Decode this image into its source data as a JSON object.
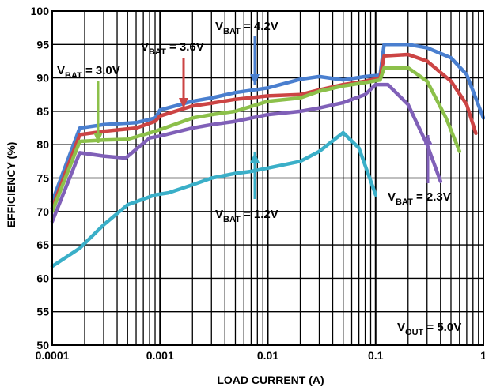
{
  "chart_data": {
    "type": "line",
    "xlabel": "LOAD CURRENT (A)",
    "ylabel": "EFFICIENCY (%)",
    "xscale": "log",
    "xlim": [
      0.0001,
      1
    ],
    "ylim": [
      50,
      100
    ],
    "grid": true,
    "x_tick_labels": [
      "0.0001",
      "0.001",
      "0.01",
      "0.1",
      "1"
    ],
    "y_tick_labels": [
      "50",
      "55",
      "60",
      "65",
      "70",
      "75",
      "80",
      "85",
      "90",
      "95",
      "100"
    ],
    "series": [
      {
        "color": "#4a7fcf",
        "label_main": "V",
        "label_sub": "BAT",
        "label_value": " = 4.2V",
        "points": [
          [
            0.0001,
            71.5
          ],
          [
            0.00018,
            82.5
          ],
          [
            0.0003,
            83
          ],
          [
            0.0006,
            83.3
          ],
          [
            0.0009,
            84
          ],
          [
            0.001,
            85.2
          ],
          [
            0.002,
            86.5
          ],
          [
            0.003,
            87
          ],
          [
            0.005,
            87.8
          ],
          [
            0.01,
            88.5
          ],
          [
            0.02,
            89.8
          ],
          [
            0.03,
            90.2
          ],
          [
            0.05,
            89.7
          ],
          [
            0.08,
            90.2
          ],
          [
            0.11,
            90.4
          ],
          [
            0.12,
            95
          ],
          [
            0.2,
            95
          ],
          [
            0.3,
            94.5
          ],
          [
            0.5,
            93
          ],
          [
            0.7,
            90.5
          ],
          [
            1.0,
            84
          ]
        ]
      },
      {
        "color": "#cc4444",
        "label_main": "V",
        "label_sub": "BAT",
        "label_value": " = 3.6V",
        "points": [
          [
            0.0001,
            70.5
          ],
          [
            0.00018,
            81.5
          ],
          [
            0.0003,
            82
          ],
          [
            0.0006,
            82.5
          ],
          [
            0.0009,
            83.5
          ],
          [
            0.001,
            84.3
          ],
          [
            0.002,
            85.8
          ],
          [
            0.003,
            86.2
          ],
          [
            0.005,
            86.8
          ],
          [
            0.01,
            87.3
          ],
          [
            0.02,
            87.5
          ],
          [
            0.03,
            88.2
          ],
          [
            0.05,
            89
          ],
          [
            0.08,
            89.5
          ],
          [
            0.11,
            90
          ],
          [
            0.12,
            93.3
          ],
          [
            0.2,
            93.5
          ],
          [
            0.3,
            92.5
          ],
          [
            0.5,
            89.5
          ],
          [
            0.7,
            86
          ],
          [
            0.85,
            81.7
          ]
        ]
      },
      {
        "color": "#8cc04a",
        "label_main": "V",
        "label_sub": "BAT",
        "label_value": " = 3.0V",
        "points": [
          [
            0.0001,
            70
          ],
          [
            0.00018,
            80.5
          ],
          [
            0.0003,
            80.7
          ],
          [
            0.0005,
            80.8
          ],
          [
            0.0009,
            82
          ],
          [
            0.0011,
            82.5
          ],
          [
            0.002,
            84
          ],
          [
            0.003,
            84.5
          ],
          [
            0.005,
            85
          ],
          [
            0.01,
            86.5
          ],
          [
            0.02,
            87
          ],
          [
            0.03,
            88
          ],
          [
            0.05,
            88.8
          ],
          [
            0.08,
            89.3
          ],
          [
            0.11,
            89.7
          ],
          [
            0.12,
            91.5
          ],
          [
            0.2,
            91.5
          ],
          [
            0.3,
            89.5
          ],
          [
            0.45,
            84
          ],
          [
            0.6,
            79
          ]
        ]
      },
      {
        "color": "#8060b8",
        "label_main": "V",
        "label_sub": "BAT",
        "label_value": " = 2.3V",
        "points": [
          [
            0.0001,
            68.5
          ],
          [
            0.00018,
            78.8
          ],
          [
            0.0003,
            78.3
          ],
          [
            0.00048,
            78
          ],
          [
            0.0008,
            81
          ],
          [
            0.001,
            81.3
          ],
          [
            0.002,
            82.5
          ],
          [
            0.003,
            83
          ],
          [
            0.005,
            83.5
          ],
          [
            0.01,
            84.5
          ],
          [
            0.02,
            85
          ],
          [
            0.03,
            85.5
          ],
          [
            0.05,
            86.3
          ],
          [
            0.08,
            87.5
          ],
          [
            0.1,
            89
          ],
          [
            0.13,
            89
          ],
          [
            0.2,
            86
          ],
          [
            0.3,
            80
          ],
          [
            0.4,
            74.5
          ]
        ]
      },
      {
        "color": "#3aafc8",
        "label_main": "V",
        "label_sub": "BAT",
        "label_value": " = 1.2V",
        "points": [
          [
            0.0001,
            61.8
          ],
          [
            0.00018,
            64.5
          ],
          [
            0.0003,
            68
          ],
          [
            0.0005,
            71
          ],
          [
            0.0009,
            72.5
          ],
          [
            0.0012,
            72.8
          ],
          [
            0.002,
            74
          ],
          [
            0.003,
            75
          ],
          [
            0.005,
            75.7
          ],
          [
            0.007,
            76
          ],
          [
            0.01,
            76.5
          ],
          [
            0.02,
            77.5
          ],
          [
            0.03,
            79
          ],
          [
            0.05,
            81.8
          ],
          [
            0.07,
            79.5
          ],
          [
            0.1,
            72.5
          ]
        ]
      }
    ],
    "annotations": [
      {
        "main": "V",
        "sub": "OUT",
        "value": " = 5.0V"
      }
    ]
  }
}
